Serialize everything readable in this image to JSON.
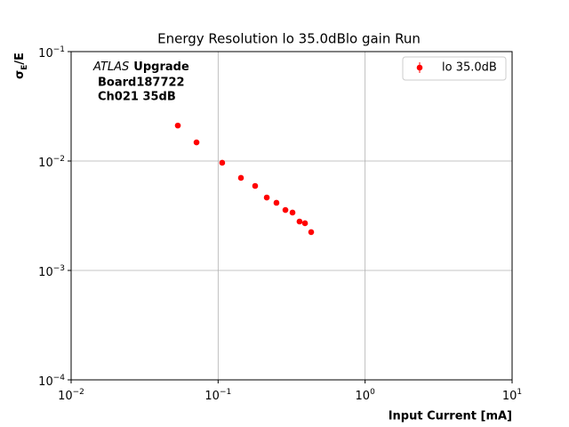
{
  "chart_data": {
    "type": "scatter",
    "title": "Energy Resolution lo 35.0dBlo gain Run",
    "xlabel": "Input Current [mA]",
    "ylabel": {
      "base": "σ",
      "sub": "E",
      "rest": "/E"
    },
    "annotation": {
      "italic": "ATLAS",
      "bold": "Upgrade",
      "lines": [
        "Board187722",
        "Ch021 35dB"
      ]
    },
    "xscale": "log",
    "yscale": "log",
    "xlim": [
      0.01,
      10
    ],
    "ylim": [
      0.0001,
      0.1
    ],
    "xticks": [
      {
        "value": 0.01,
        "label": "10",
        "power": "−2"
      },
      {
        "value": 0.1,
        "label": "10",
        "power": "−1"
      },
      {
        "value": 1,
        "label": "10",
        "power": "0"
      },
      {
        "value": 10,
        "label": "10",
        "power": "1"
      }
    ],
    "yticks": [
      {
        "value": 0.0001,
        "label": "10",
        "power": "−4"
      },
      {
        "value": 0.001,
        "label": "10",
        "power": "−3"
      },
      {
        "value": 0.01,
        "label": "10",
        "power": "−2"
      },
      {
        "value": 0.1,
        "label": "10",
        "power": "−1"
      }
    ],
    "grid": true,
    "legend": "upper right",
    "series": [
      {
        "name": "lo 35.0dB",
        "color": "#ff0000",
        "x": [
          0.0532,
          0.0713,
          0.1066,
          0.143,
          0.1786,
          0.2143,
          0.2494,
          0.287,
          0.3207,
          0.358,
          0.39,
          0.4296
        ],
        "values": [
          0.0211,
          0.0148,
          0.00964,
          0.00701,
          0.00592,
          0.00464,
          0.00415,
          0.00357,
          0.00338,
          0.0028,
          0.0027,
          0.00224
        ]
      }
    ]
  }
}
